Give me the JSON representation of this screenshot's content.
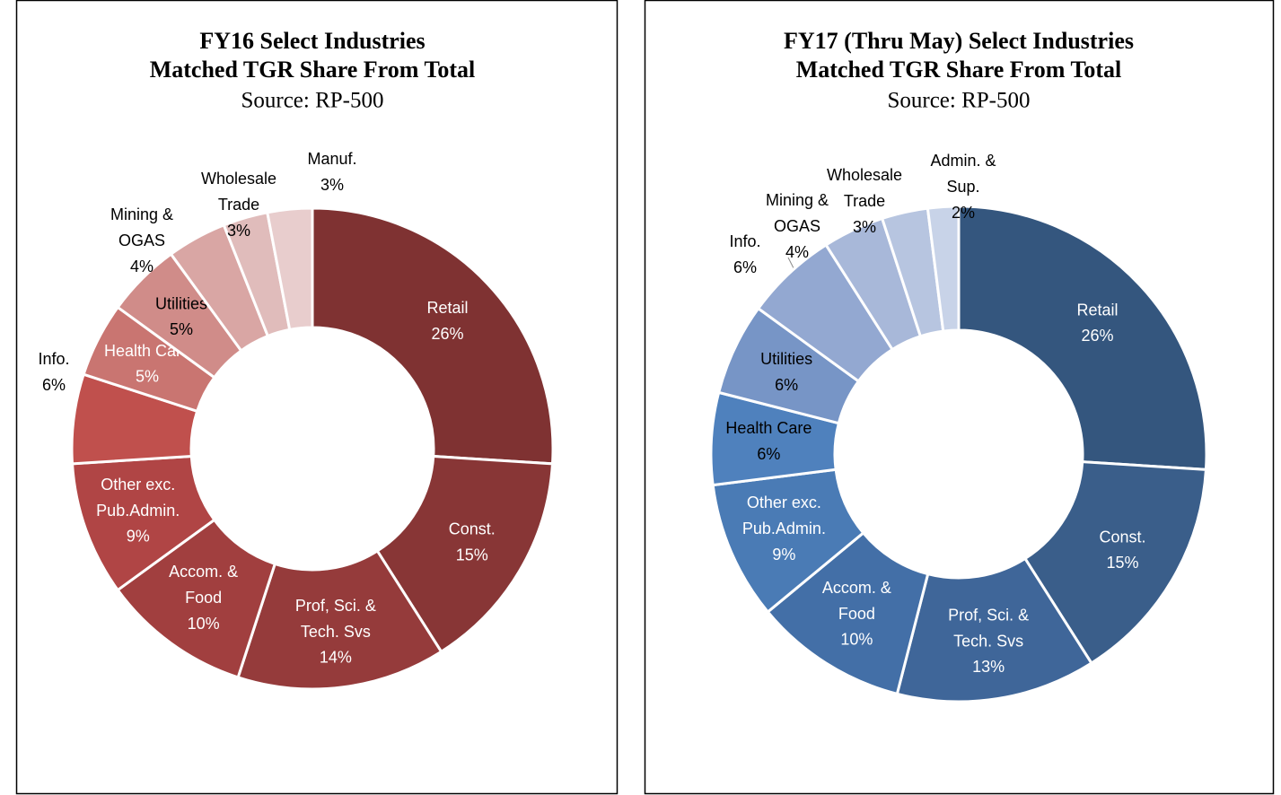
{
  "chart_data": [
    {
      "type": "pie",
      "donut": true,
      "title": [
        "FY16 Select Industries",
        "Matched TGR Share From Total"
      ],
      "subtitle": "Source: RP-500",
      "categories": [
        "Retail",
        "Const.",
        "Prof, Sci. &\nTech. Svs",
        "Accom. &\nFood",
        "Other exc.\nPub.Admin.",
        "Info.",
        "Health Care",
        "Utilities",
        "Mining &\nOGAS",
        "Wholesale\nTrade",
        "Manuf."
      ],
      "values": [
        26,
        15,
        14,
        10,
        9,
        6,
        5,
        5,
        4,
        3,
        3
      ],
      "value_labels": [
        "26%",
        "15%",
        "14%",
        "10%",
        "9%",
        "6%",
        "5%",
        "5%",
        "4%",
        "3%",
        "3%"
      ],
      "colors": [
        "#7f3232",
        "#883636",
        "#953b3b",
        "#a13f3f",
        "#b04545",
        "#c0504d",
        "#c97571",
        "#d08c89",
        "#d9a6a4",
        "#e0bcbb",
        "#e8cdcd"
      ]
    },
    {
      "type": "pie",
      "donut": true,
      "title": [
        "FY17 (Thru May) Select Industries",
        "Matched TGR Share From Total"
      ],
      "subtitle": "Source: RP-500",
      "categories": [
        "Retail",
        "Const.",
        "Prof, Sci. &\nTech. Svs",
        "Accom. &\nFood",
        "Other exc.\nPub.Admin.",
        "Health Care",
        "Utilities",
        "Info.",
        "Mining &\nOGAS",
        "Wholesale\nTrade",
        "Admin. &\nSup."
      ],
      "values": [
        26,
        15,
        13,
        10,
        9,
        6,
        6,
        6,
        4,
        3,
        2
      ],
      "value_labels": [
        "26%",
        "15%",
        "13%",
        "10%",
        "9%",
        "6%",
        "6%",
        "6%",
        "4%",
        "3%",
        "2%"
      ],
      "colors": [
        "#34567e",
        "#3a5e8a",
        "#3f6699",
        "#436fa7",
        "#4a7bb5",
        "#4f81bd",
        "#7795c6",
        "#93a8d1",
        "#a8b8d9",
        "#b7c5e0",
        "#c8d3e8"
      ]
    }
  ]
}
